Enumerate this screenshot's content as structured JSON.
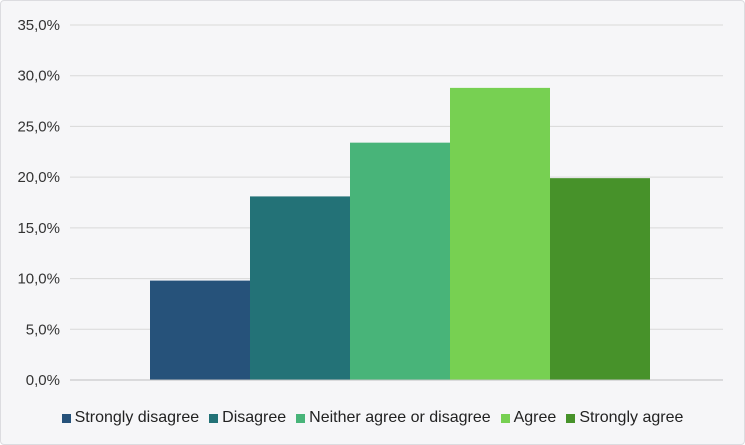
{
  "chart_data": {
    "type": "bar",
    "categories": [
      "Strongly disagree",
      "Disagree",
      "Neither agree or disagree",
      "Agree",
      "Strongly agree"
    ],
    "values": [
      9.8,
      18.1,
      23.4,
      28.8,
      19.9
    ],
    "value_unit": "%",
    "ylim": [
      0,
      35
    ],
    "yticks": [
      "0,0%",
      "5,0%",
      "10,0%",
      "15,0%",
      "20,0%",
      "25,0%",
      "30,0%",
      "35,0%"
    ],
    "colors": [
      "#26527a",
      "#237277",
      "#48b479",
      "#77d052",
      "#47922a"
    ],
    "grid": true,
    "legend_position": "bottom",
    "title": "",
    "xlabel": "",
    "ylabel": ""
  }
}
